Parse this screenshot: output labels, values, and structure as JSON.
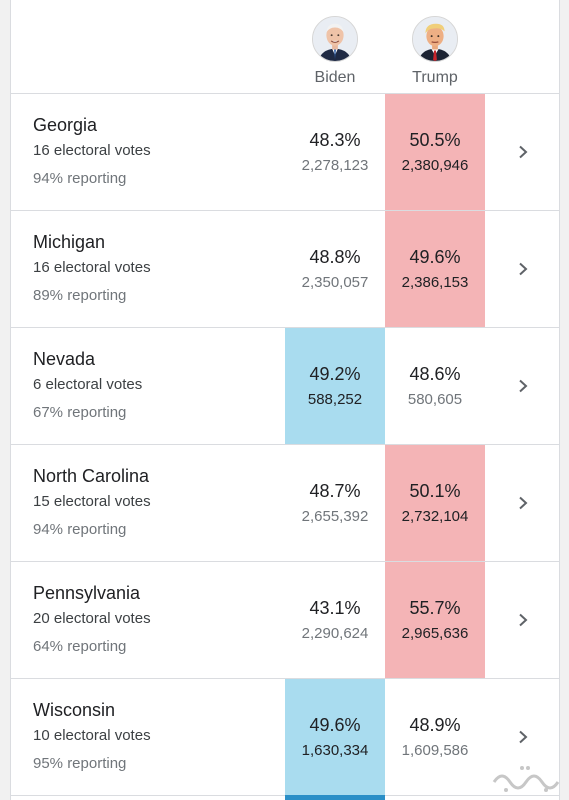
{
  "candidates": [
    {
      "name": "Biden",
      "icon": "biden-avatar-icon",
      "color": "#a9dcef"
    },
    {
      "name": "Trump",
      "icon": "trump-avatar-icon",
      "color": "#f4b4b6"
    }
  ],
  "states": [
    {
      "name": "Georgia",
      "electoral": "16 electoral votes",
      "reporting": "94% reporting",
      "biden_pct": "48.3%",
      "biden_votes": "2,278,123",
      "trump_pct": "50.5%",
      "trump_votes": "2,380,946",
      "leader": "trump"
    },
    {
      "name": "Michigan",
      "electoral": "16 electoral votes",
      "reporting": "89% reporting",
      "biden_pct": "48.8%",
      "biden_votes": "2,350,057",
      "trump_pct": "49.6%",
      "trump_votes": "2,386,153",
      "leader": "trump"
    },
    {
      "name": "Nevada",
      "electoral": "6 electoral votes",
      "reporting": "67% reporting",
      "biden_pct": "49.2%",
      "biden_votes": "588,252",
      "trump_pct": "48.6%",
      "trump_votes": "580,605",
      "leader": "biden"
    },
    {
      "name": "North Carolina",
      "electoral": "15 electoral votes",
      "reporting": "94% reporting",
      "biden_pct": "48.7%",
      "biden_votes": "2,655,392",
      "trump_pct": "50.1%",
      "trump_votes": "2,732,104",
      "leader": "trump"
    },
    {
      "name": "Pennsylvania",
      "electoral": "20 electoral votes",
      "reporting": "64% reporting",
      "biden_pct": "43.1%",
      "biden_votes": "2,290,624",
      "trump_pct": "55.7%",
      "trump_votes": "2,965,636",
      "leader": "trump"
    },
    {
      "name": "Wisconsin",
      "electoral": "10 electoral votes",
      "reporting": "95% reporting",
      "biden_pct": "49.6%",
      "biden_votes": "1,630,334",
      "trump_pct": "48.9%",
      "trump_votes": "1,609,586",
      "leader": "biden"
    }
  ],
  "row_icon": "chevron-right-icon",
  "watermark_icon": "site-logo-watermark"
}
